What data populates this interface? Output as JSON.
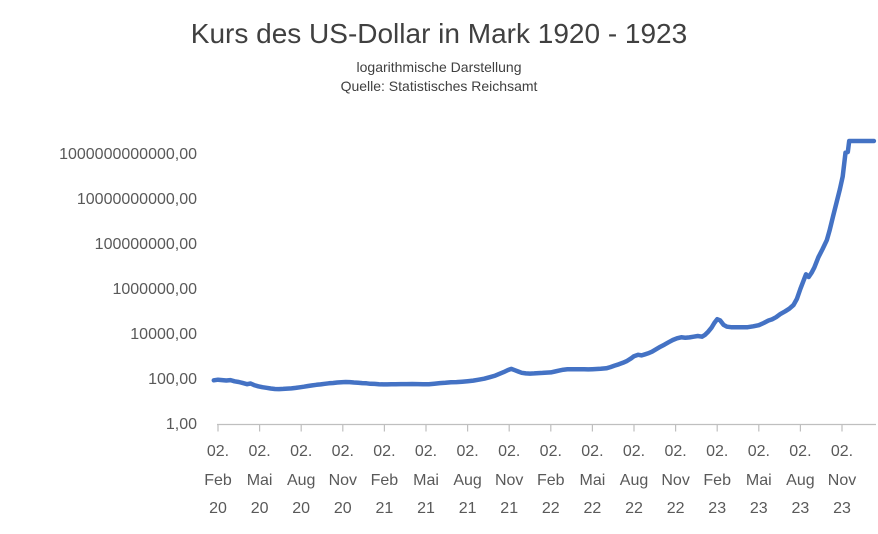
{
  "header": {
    "title": "Kurs des US-Dollar in Mark 1920 - 1923",
    "subtitle": "logarithmische Darstellung",
    "source": "Quelle: Statistisches Reichsamt"
  },
  "colors": {
    "line": "#4472C4",
    "axis": "#BFBFBF",
    "tick_labels": "#595959",
    "title": "#404040",
    "background": "#FFFFFF"
  },
  "chart_data": {
    "type": "line",
    "title": "Kurs des US-Dollar in Mark 1920 - 1923",
    "subtitle": "logarithmische Darstellung",
    "source": "Quelle: Statistisches Reichsamt",
    "grid": false,
    "legend": "none",
    "y_axis": {
      "scale": "log10",
      "ylim": [
        1,
        10000000000000
      ],
      "ticks": [
        {
          "label": "1,00",
          "value": 1
        },
        {
          "label": "100,00",
          "value": 100
        },
        {
          "label": "10000,00",
          "value": 10000
        },
        {
          "label": "1000000,00",
          "value": 1000000
        },
        {
          "label": "100000000,00",
          "value": 100000000
        },
        {
          "label": "10000000000,00",
          "value": 10000000000
        },
        {
          "label": "1000000000000,00",
          "value": 1000000000000
        }
      ]
    },
    "x_axis": {
      "t_unit": "months since 1920-02-02",
      "tick_interval_months": 3,
      "ticks": [
        {
          "t": 0,
          "lines": [
            "02.",
            "Feb",
            "20"
          ]
        },
        {
          "t": 3,
          "lines": [
            "02.",
            "Mai",
            "20"
          ]
        },
        {
          "t": 6,
          "lines": [
            "02.",
            "Aug",
            "20"
          ]
        },
        {
          "t": 9,
          "lines": [
            "02.",
            "Nov",
            "20"
          ]
        },
        {
          "t": 12,
          "lines": [
            "02.",
            "Feb",
            "21"
          ]
        },
        {
          "t": 15,
          "lines": [
            "02.",
            "Mai",
            "21"
          ]
        },
        {
          "t": 18,
          "lines": [
            "02.",
            "Aug",
            "21"
          ]
        },
        {
          "t": 21,
          "lines": [
            "02.",
            "Nov",
            "21"
          ]
        },
        {
          "t": 24,
          "lines": [
            "02.",
            "Feb",
            "22"
          ]
        },
        {
          "t": 27,
          "lines": [
            "02.",
            "Mai",
            "22"
          ]
        },
        {
          "t": 30,
          "lines": [
            "02.",
            "Aug",
            "22"
          ]
        },
        {
          "t": 33,
          "lines": [
            "02.",
            "Nov",
            "22"
          ]
        },
        {
          "t": 36,
          "lines": [
            "02.",
            "Feb",
            "23"
          ]
        },
        {
          "t": 39,
          "lines": [
            "02.",
            "Mai",
            "23"
          ]
        },
        {
          "t": 42,
          "lines": [
            "02.",
            "Aug",
            "23"
          ]
        },
        {
          "t": 45,
          "lines": [
            "02.",
            "Nov",
            "23"
          ]
        }
      ]
    },
    "series": [
      {
        "name": "US-Dollar in Mark",
        "color": "#4472C4",
        "points": [
          [
            -0.3,
            93
          ],
          [
            0,
            99
          ],
          [
            0.3,
            95
          ],
          [
            0.6,
            91
          ],
          [
            0.9,
            95
          ],
          [
            1.2,
            84
          ],
          [
            1.5,
            78
          ],
          [
            1.8,
            70
          ],
          [
            2.1,
            62
          ],
          [
            2.35,
            67
          ],
          [
            2.6,
            57
          ],
          [
            2.9,
            50
          ],
          [
            3.2,
            46
          ],
          [
            3.5,
            43
          ],
          [
            3.8,
            40
          ],
          [
            4.1,
            38
          ],
          [
            4.4,
            37.5
          ],
          [
            4.7,
            38.5
          ],
          [
            5.0,
            39.5
          ],
          [
            5.3,
            40.5
          ],
          [
            5.6,
            42.5
          ],
          [
            5.9,
            45.5
          ],
          [
            6.2,
            48
          ],
          [
            6.5,
            52
          ],
          [
            6.8,
            55
          ],
          [
            7.1,
            58.5
          ],
          [
            7.4,
            61
          ],
          [
            7.7,
            65
          ],
          [
            8.0,
            68
          ],
          [
            8.3,
            70.5
          ],
          [
            8.6,
            74
          ],
          [
            8.9,
            76.5
          ],
          [
            9.2,
            78
          ],
          [
            9.5,
            77
          ],
          [
            9.8,
            74
          ],
          [
            10.1,
            72
          ],
          [
            10.4,
            70
          ],
          [
            10.7,
            68
          ],
          [
            11.0,
            65
          ],
          [
            11.3,
            64
          ],
          [
            11.6,
            62.5
          ],
          [
            11.9,
            61.3
          ],
          [
            12.2,
            61
          ],
          [
            12.5,
            61.8
          ],
          [
            12.8,
            62.3
          ],
          [
            13.2,
            62.6
          ],
          [
            13.6,
            63.2
          ],
          [
            14.0,
            63.5
          ],
          [
            14.4,
            63
          ],
          [
            14.8,
            62.5
          ],
          [
            15.2,
            62.5
          ],
          [
            15.6,
            65.5
          ],
          [
            16.0,
            69.4
          ],
          [
            16.4,
            72
          ],
          [
            16.8,
            75.5
          ],
          [
            17.2,
            77.5
          ],
          [
            17.6,
            80.5
          ],
          [
            18.0,
            84.3
          ],
          [
            18.4,
            90
          ],
          [
            18.8,
            99
          ],
          [
            19.2,
            110
          ],
          [
            19.6,
            128
          ],
          [
            20.0,
            150
          ],
          [
            20.3,
            180
          ],
          [
            20.6,
            215
          ],
          [
            20.9,
            263
          ],
          [
            21.15,
            300
          ],
          [
            21.4,
            262
          ],
          [
            21.65,
            228
          ],
          [
            21.9,
            200
          ],
          [
            22.2,
            188
          ],
          [
            22.5,
            184
          ],
          [
            22.8,
            188
          ],
          [
            23.1,
            194
          ],
          [
            23.4,
            199
          ],
          [
            23.7,
            204
          ],
          [
            24.0,
            208
          ],
          [
            24.3,
            228
          ],
          [
            24.6,
            252
          ],
          [
            24.9,
            275
          ],
          [
            25.2,
            286
          ],
          [
            25.5,
            289
          ],
          [
            25.8,
            290.5
          ],
          [
            26.1,
            291
          ],
          [
            26.4,
            288
          ],
          [
            26.7,
            285
          ],
          [
            27.0,
            290
          ],
          [
            27.3,
            295
          ],
          [
            27.6,
            303
          ],
          [
            28.0,
            317
          ],
          [
            28.3,
            360
          ],
          [
            28.6,
            420
          ],
          [
            28.9,
            480
          ],
          [
            29.2,
            560
          ],
          [
            29.5,
            680
          ],
          [
            29.8,
            890
          ],
          [
            30.0,
            1100
          ],
          [
            30.3,
            1270
          ],
          [
            30.55,
            1190
          ],
          [
            30.8,
            1330
          ],
          [
            31.0,
            1466
          ],
          [
            31.3,
            1750
          ],
          [
            31.6,
            2250
          ],
          [
            31.9,
            2900
          ],
          [
            32.2,
            3600
          ],
          [
            32.5,
            4600
          ],
          [
            32.8,
            5800
          ],
          [
            33.1,
            6900
          ],
          [
            33.4,
            7600
          ],
          [
            33.7,
            7350
          ],
          [
            34.0,
            7589
          ],
          [
            34.3,
            8100
          ],
          [
            34.6,
            8700
          ],
          [
            34.9,
            8100
          ],
          [
            35.1,
            9600
          ],
          [
            35.35,
            13500
          ],
          [
            35.6,
            21000
          ],
          [
            35.8,
            33500
          ],
          [
            36.0,
            49000
          ],
          [
            36.2,
            43500
          ],
          [
            36.45,
            27500
          ],
          [
            36.7,
            22500
          ],
          [
            37.0,
            21500
          ],
          [
            37.4,
            21200
          ],
          [
            37.8,
            21300
          ],
          [
            38.2,
            21500
          ],
          [
            38.6,
            23500
          ],
          [
            39.0,
            26500
          ],
          [
            39.35,
            33000
          ],
          [
            39.7,
            42500
          ],
          [
            39.95,
            47700
          ],
          [
            40.25,
            60000
          ],
          [
            40.55,
            82000
          ],
          [
            40.9,
            110000
          ],
          [
            41.2,
            143000
          ],
          [
            41.5,
            210000
          ],
          [
            41.75,
            390000
          ],
          [
            42.0,
            1100000
          ],
          [
            42.2,
            2300000
          ],
          [
            42.4,
            4860000
          ],
          [
            42.6,
            3700000
          ],
          [
            42.8,
            5600000
          ],
          [
            43.0,
            9700000
          ],
          [
            43.3,
            28000000
          ],
          [
            43.6,
            65000000
          ],
          [
            43.9,
            160000000
          ],
          [
            44.1,
            420000000
          ],
          [
            44.35,
            1800000000
          ],
          [
            44.6,
            7500000000
          ],
          [
            44.85,
            30000000000
          ],
          [
            45.05,
            110000000000
          ],
          [
            45.25,
            1260000000000
          ],
          [
            45.42,
            1350000000000
          ],
          [
            45.52,
            4200000000000
          ],
          [
            46.0,
            4200000000000
          ],
          [
            47.3,
            4200000000000
          ]
        ]
      }
    ]
  }
}
